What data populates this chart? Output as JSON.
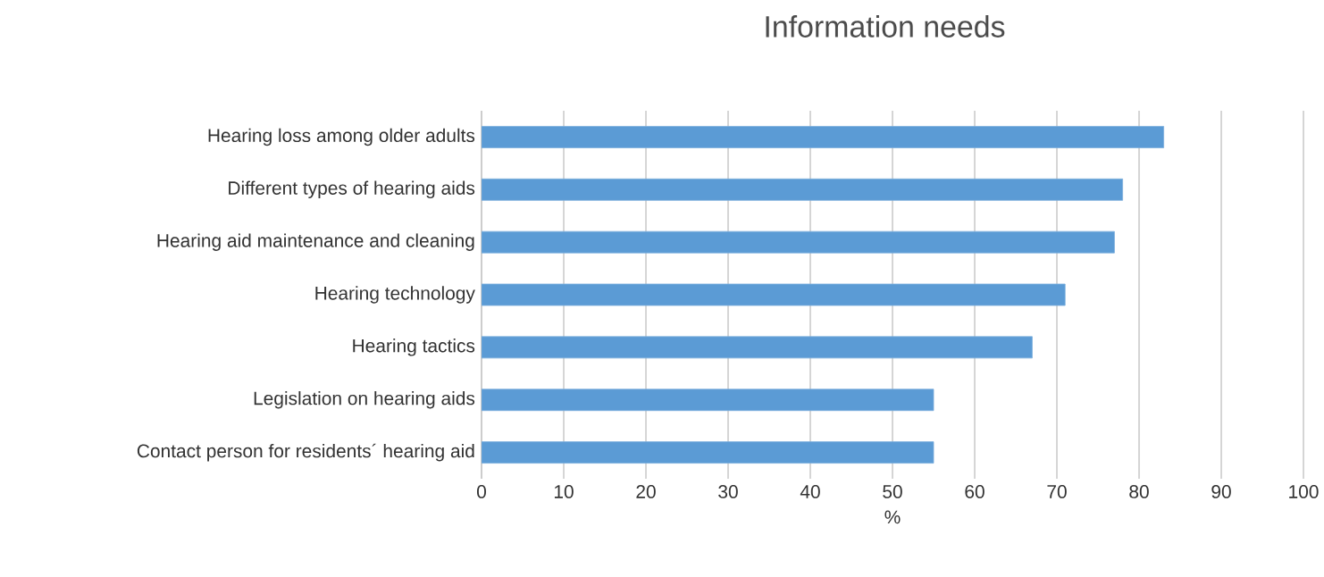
{
  "chart_data": {
    "type": "bar",
    "orientation": "horizontal",
    "title": "Information needs",
    "xlabel": "%",
    "categories": [
      "Hearing loss among older adults",
      "Different types of hearing aids",
      "Hearing aid maintenance and cleaning",
      "Hearing technology",
      "Hearing tactics",
      "Legislation on hearing aids",
      "Contact person for residents´ hearing aid"
    ],
    "values": [
      83,
      78,
      77,
      71,
      67,
      55,
      55
    ],
    "color": "#5b9bd5",
    "xlim": [
      0,
      100
    ],
    "xticks": [
      0,
      10,
      20,
      30,
      40,
      50,
      60,
      70,
      80,
      90,
      100
    ],
    "grid": "x"
  }
}
